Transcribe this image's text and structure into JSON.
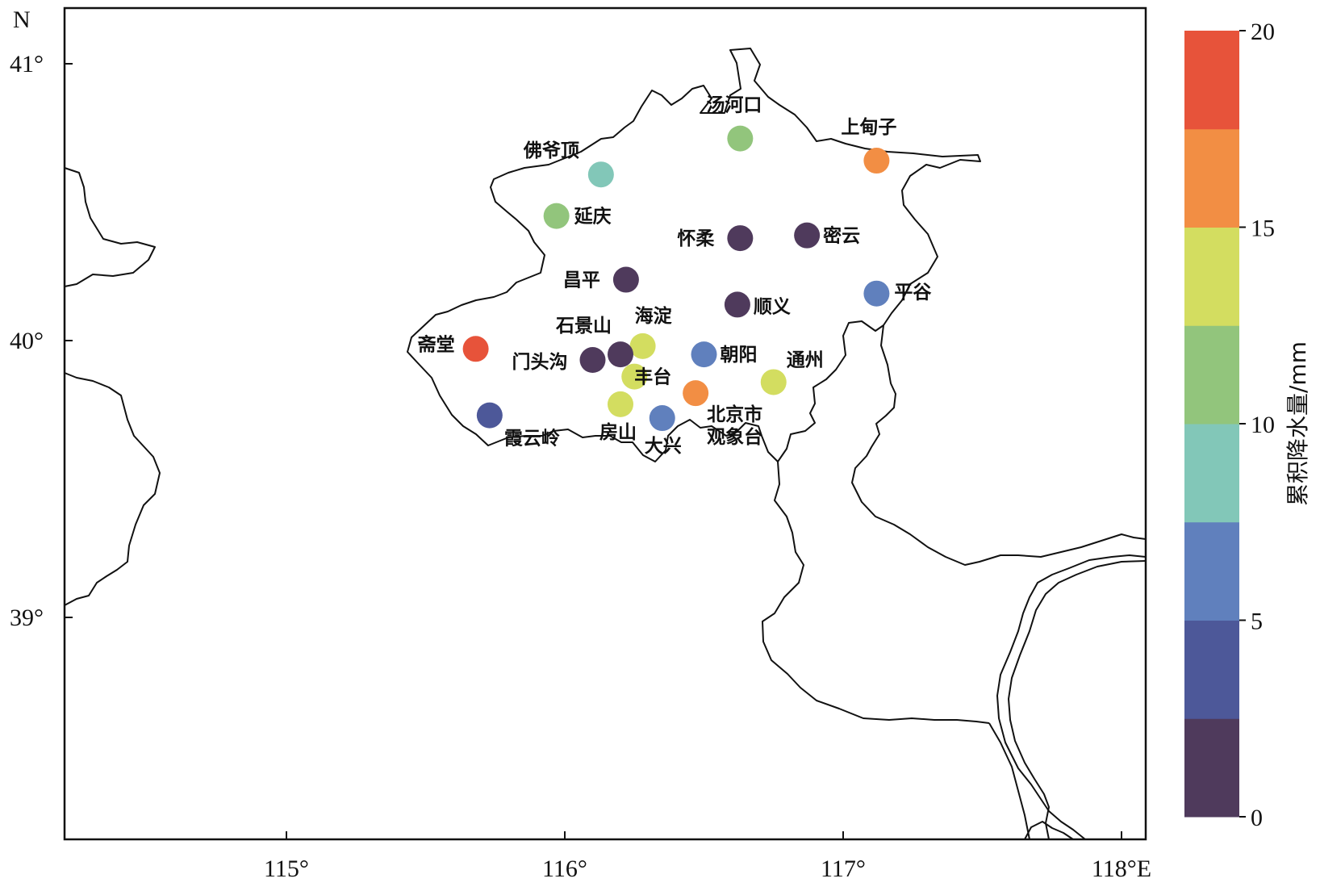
{
  "map": {
    "north_label": "N",
    "lon_ticks": [
      {
        "value": 115,
        "label": "115°"
      },
      {
        "value": 116,
        "label": "116°"
      },
      {
        "value": 117,
        "label": "117°"
      },
      {
        "value": 118,
        "label": "118°E"
      }
    ],
    "lat_ticks": [
      {
        "value": 41,
        "label": "41°"
      },
      {
        "value": 40,
        "label": "40°"
      },
      {
        "value": 39,
        "label": "39°"
      }
    ],
    "lon_range": [
      114.2,
      118.1
    ],
    "lat_range": [
      38.2,
      41.2
    ]
  },
  "colorbar": {
    "title": "累积降水量/mm",
    "range": [
      0,
      20
    ],
    "tick_labels": [
      "0",
      "5",
      "10",
      "15",
      "20"
    ],
    "colors": [
      "#4f3a5c",
      "#4d5899",
      "#6080bd",
      "#82c7b8",
      "#92c57c",
      "#d3dd60",
      "#f28e44",
      "#e7533a"
    ]
  },
  "stations": [
    {
      "name": "汤河口",
      "lon": 116.63,
      "lat": 40.73,
      "precip": 11.3
    },
    {
      "name": "上甸子",
      "lon": 117.12,
      "lat": 40.65,
      "precip": 16.3
    },
    {
      "name": "佛爷顶",
      "lon": 116.13,
      "lat": 40.6,
      "precip": 8.8
    },
    {
      "name": "延庆",
      "lon": 115.97,
      "lat": 40.45,
      "precip": 11.3
    },
    {
      "name": "怀柔",
      "lon": 116.63,
      "lat": 40.37,
      "precip": 1.2
    },
    {
      "name": "密云",
      "lon": 116.87,
      "lat": 40.38,
      "precip": 1.2
    },
    {
      "name": "昌平",
      "lon": 116.22,
      "lat": 40.22,
      "precip": 1.2
    },
    {
      "name": "平谷",
      "lon": 117.12,
      "lat": 40.17,
      "precip": 6.3
    },
    {
      "name": "顺义",
      "lon": 116.62,
      "lat": 40.13,
      "precip": 1.2
    },
    {
      "name": "斋堂",
      "lon": 115.68,
      "lat": 39.97,
      "precip": 18.8
    },
    {
      "name": "海淀",
      "lon": 116.28,
      "lat": 39.98,
      "precip": 13.8
    },
    {
      "name": "石景山",
      "lon": 116.2,
      "lat": 39.95,
      "precip": 1.2
    },
    {
      "name": "门头沟",
      "lon": 116.1,
      "lat": 39.93,
      "precip": 1.2
    },
    {
      "name": "朝阳",
      "lon": 116.5,
      "lat": 39.95,
      "precip": 6.3
    },
    {
      "name": "丰台",
      "lon": 116.25,
      "lat": 39.87,
      "precip": 13.8
    },
    {
      "name": "通州",
      "lon": 116.75,
      "lat": 39.85,
      "precip": 13.8
    },
    {
      "name": "北京市\n观象台",
      "lon": 116.47,
      "lat": 39.81,
      "precip": 16.3
    },
    {
      "name": "房山",
      "lon": 116.2,
      "lat": 39.77,
      "precip": 13.8
    },
    {
      "name": "大兴",
      "lon": 116.35,
      "lat": 39.72,
      "precip": 6.3
    },
    {
      "name": "霞云岭",
      "lon": 115.73,
      "lat": 39.73,
      "precip": 3.8
    }
  ]
}
